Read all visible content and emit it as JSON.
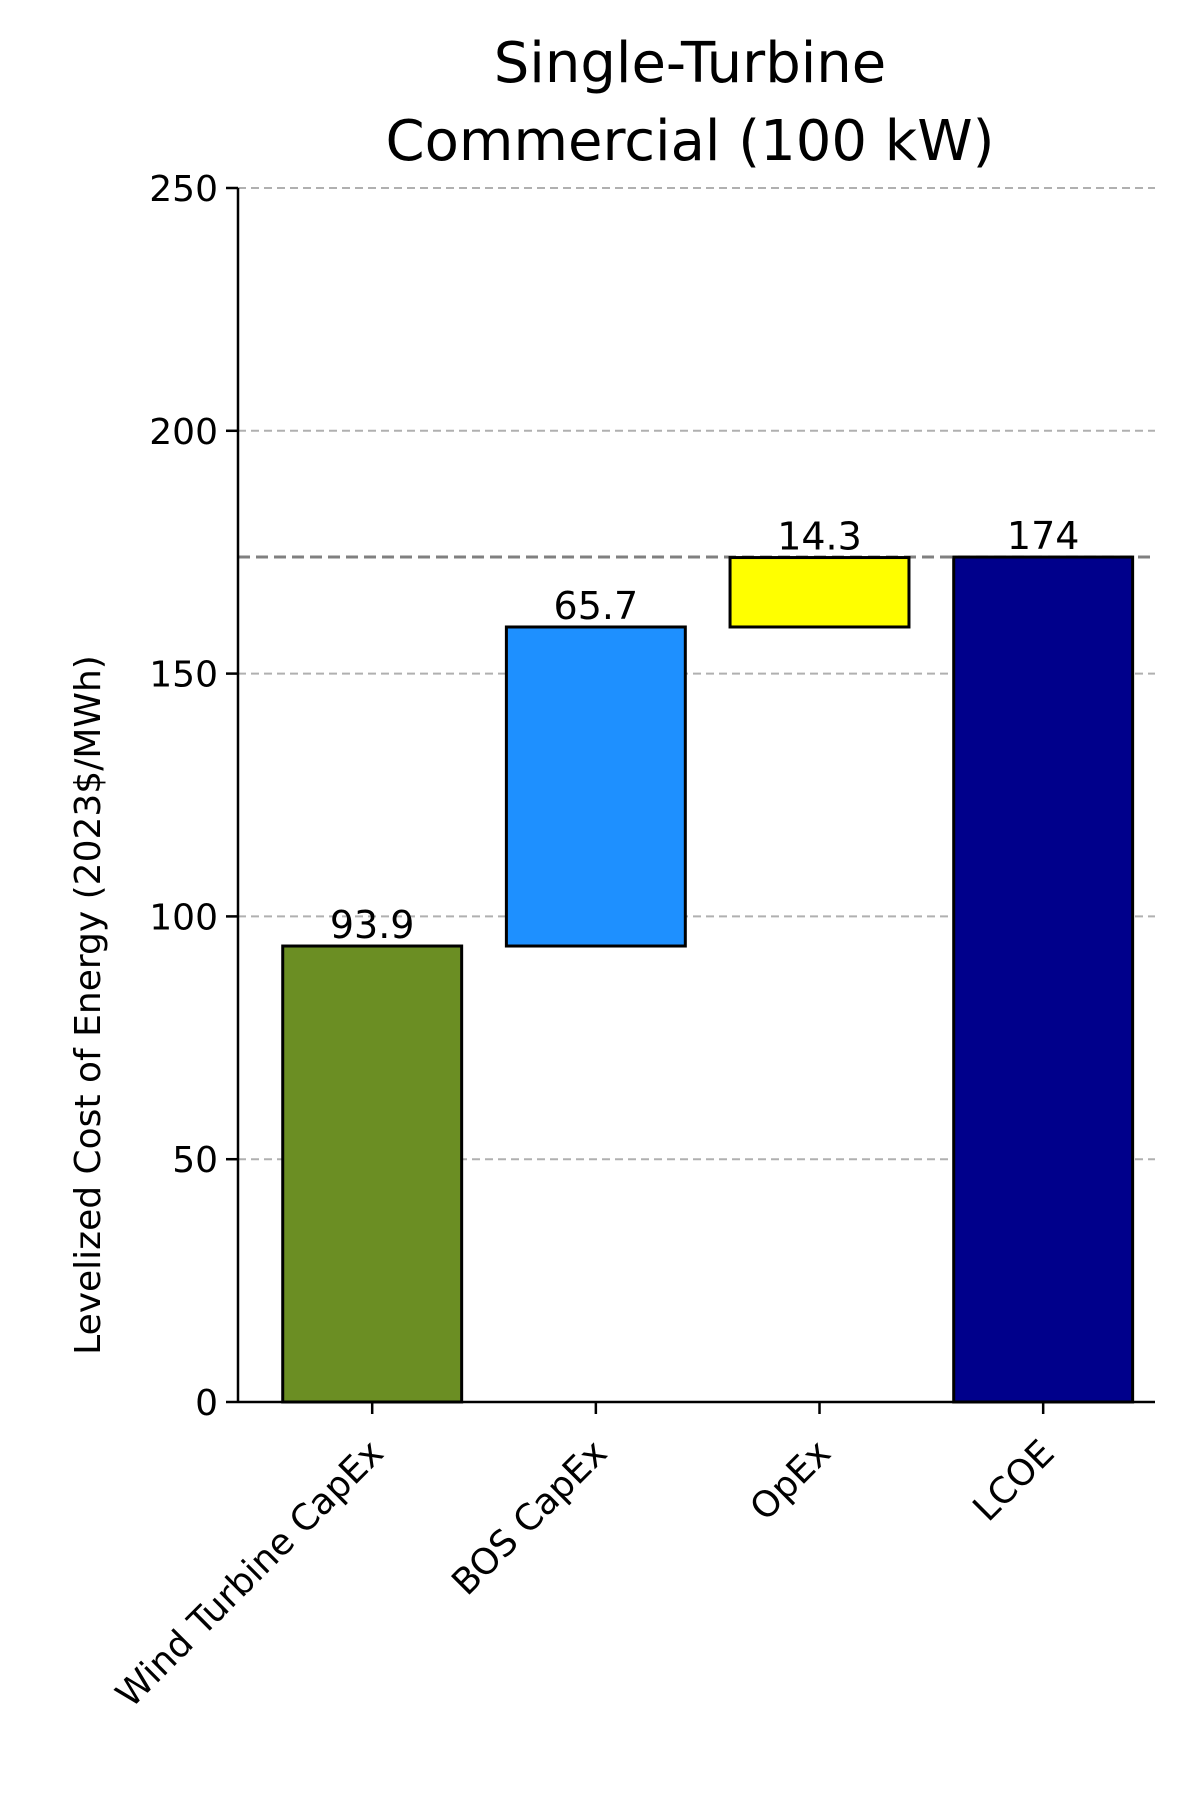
{
  "chart_data": {
    "type": "bar",
    "subtype": "waterfall",
    "title_lines": [
      "Single-Turbine",
      "Commercial (100 kW)"
    ],
    "xlabel": "",
    "ylabel": "Levelized Cost of Energy (2023$/MWh)",
    "ylim": [
      0,
      250
    ],
    "yticks": [
      0,
      50,
      100,
      150,
      200,
      250
    ],
    "ytick_labels": [
      "0",
      "50",
      "100",
      "150",
      "200",
      "250"
    ],
    "grid": "horizontal dashed",
    "reference_line": 174,
    "bars": [
      {
        "category": "Wind Turbine CapEx",
        "value": 93.9,
        "bottom": 0,
        "label": "93.9",
        "color": "#6B8E23"
      },
      {
        "category": "BOS CapEx",
        "value": 65.7,
        "bottom": 93.9,
        "label": "65.7",
        "color": "#1E90FF"
      },
      {
        "category": "OpEx",
        "value": 14.3,
        "bottom": 159.6,
        "label": "14.3",
        "color": "#FFFF00"
      },
      {
        "category": "LCOE",
        "value": 174,
        "bottom": 0,
        "label": "174",
        "color": "#00008B"
      }
    ]
  }
}
